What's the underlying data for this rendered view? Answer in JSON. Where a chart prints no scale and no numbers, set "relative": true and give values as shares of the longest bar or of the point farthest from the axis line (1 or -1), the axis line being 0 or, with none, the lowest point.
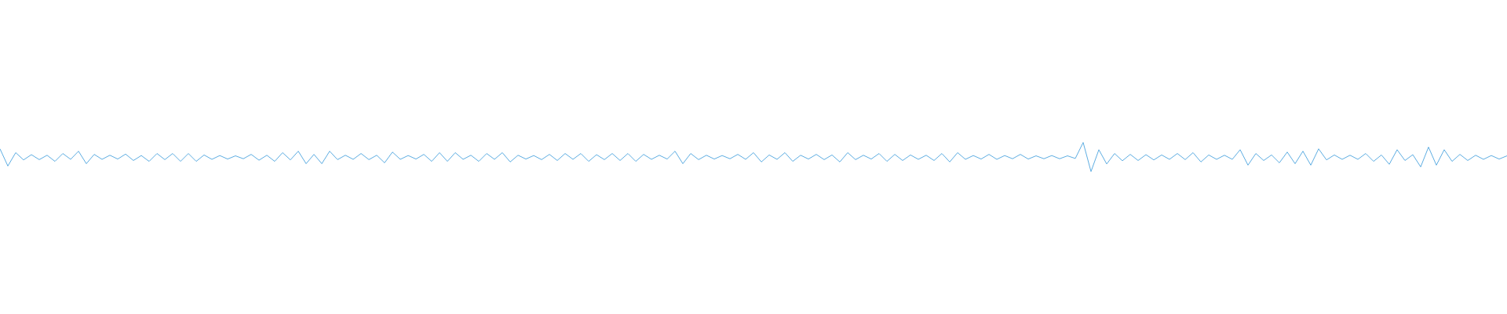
{
  "chart_data": {
    "type": "line",
    "relative": true,
    "color": "#5dade2",
    "categories": [
      null,
      null,
      null,
      null,
      null,
      null,
      null,
      null,
      null,
      null,
      null,
      null,
      null,
      null,
      null,
      null,
      null,
      null,
      null,
      null,
      null,
      null,
      null,
      null,
      null,
      null,
      null,
      null,
      null,
      null,
      null,
      null,
      null,
      null,
      null,
      null,
      null,
      null,
      null,
      null,
      null,
      null,
      null,
      null,
      null,
      null,
      null,
      null,
      null,
      null,
      null,
      null,
      null,
      null,
      null,
      null,
      null,
      null,
      null,
      null,
      null,
      null,
      null,
      null,
      null,
      null,
      null,
      null,
      null,
      null,
      null,
      null,
      null,
      null,
      null,
      null,
      null,
      null,
      null,
      null,
      null,
      null,
      null,
      null,
      null,
      null,
      null,
      null,
      null,
      null,
      null,
      null,
      null,
      null,
      null,
      null,
      null,
      null,
      null,
      null,
      null,
      null,
      null,
      null,
      null,
      null,
      null,
      null,
      null,
      null,
      null,
      null,
      null,
      null,
      null,
      null,
      null,
      null,
      null,
      null,
      null,
      null,
      null,
      null,
      null,
      null,
      null,
      null,
      null,
      null,
      null,
      null,
      null,
      null,
      null,
      null,
      null,
      null,
      null,
      null,
      null,
      null,
      null,
      null,
      null,
      null,
      null,
      null,
      null,
      null,
      null,
      null,
      null,
      null,
      null,
      null,
      null,
      null,
      null,
      null,
      null,
      null,
      null,
      null,
      null,
      null,
      null,
      null,
      null,
      null,
      null,
      null,
      null,
      null,
      null,
      null,
      null,
      null,
      null,
      null,
      null,
      null,
      null,
      null,
      null,
      null,
      null,
      null,
      null,
      null,
      null,
      null,
      null
    ],
    "values": [
      0.78,
      0.19,
      0.65,
      0.4,
      0.58,
      0.41,
      0.56,
      0.35,
      0.62,
      0.42,
      0.7,
      0.27,
      0.59,
      0.42,
      0.56,
      0.43,
      0.6,
      0.38,
      0.55,
      0.35,
      0.62,
      0.41,
      0.62,
      0.35,
      0.62,
      0.35,
      0.57,
      0.42,
      0.55,
      0.43,
      0.54,
      0.44,
      0.59,
      0.39,
      0.56,
      0.35,
      0.65,
      0.4,
      0.7,
      0.27,
      0.59,
      0.27,
      0.7,
      0.41,
      0.56,
      0.42,
      0.62,
      0.41,
      0.56,
      0.3,
      0.67,
      0.42,
      0.55,
      0.43,
      0.59,
      0.35,
      0.65,
      0.35,
      0.65,
      0.42,
      0.56,
      0.35,
      0.62,
      0.42,
      0.65,
      0.33,
      0.56,
      0.43,
      0.55,
      0.41,
      0.59,
      0.38,
      0.62,
      0.42,
      0.62,
      0.35,
      0.58,
      0.41,
      0.62,
      0.38,
      0.62,
      0.35,
      0.59,
      0.42,
      0.56,
      0.43,
      0.7,
      0.27,
      0.62,
      0.41,
      0.56,
      0.43,
      0.55,
      0.44,
      0.59,
      0.42,
      0.65,
      0.33,
      0.57,
      0.42,
      0.65,
      0.35,
      0.56,
      0.43,
      0.59,
      0.41,
      0.57,
      0.33,
      0.65,
      0.41,
      0.56,
      0.43,
      0.62,
      0.35,
      0.59,
      0.38,
      0.57,
      0.42,
      0.56,
      0.38,
      0.62,
      0.33,
      0.65,
      0.42,
      0.55,
      0.43,
      0.59,
      0.42,
      0.55,
      0.44,
      0.59,
      0.43,
      0.54,
      0.44,
      0.55,
      0.44,
      0.54,
      0.45,
      1.0,
      0.0,
      0.75,
      0.26,
      0.62,
      0.37,
      0.59,
      0.38,
      0.58,
      0.4,
      0.57,
      0.42,
      0.62,
      0.41,
      0.65,
      0.33,
      0.57,
      0.42,
      0.56,
      0.42,
      0.75,
      0.22,
      0.62,
      0.38,
      0.57,
      0.3,
      0.67,
      0.27,
      0.7,
      0.22,
      0.78,
      0.4,
      0.57,
      0.42,
      0.56,
      0.42,
      0.62,
      0.35,
      0.57,
      0.25,
      0.75,
      0.38,
      0.58,
      0.16,
      0.84,
      0.22,
      0.75,
      0.35,
      0.59,
      0.38,
      0.56,
      0.42,
      0.55,
      0.43,
      0.54
    ]
  }
}
